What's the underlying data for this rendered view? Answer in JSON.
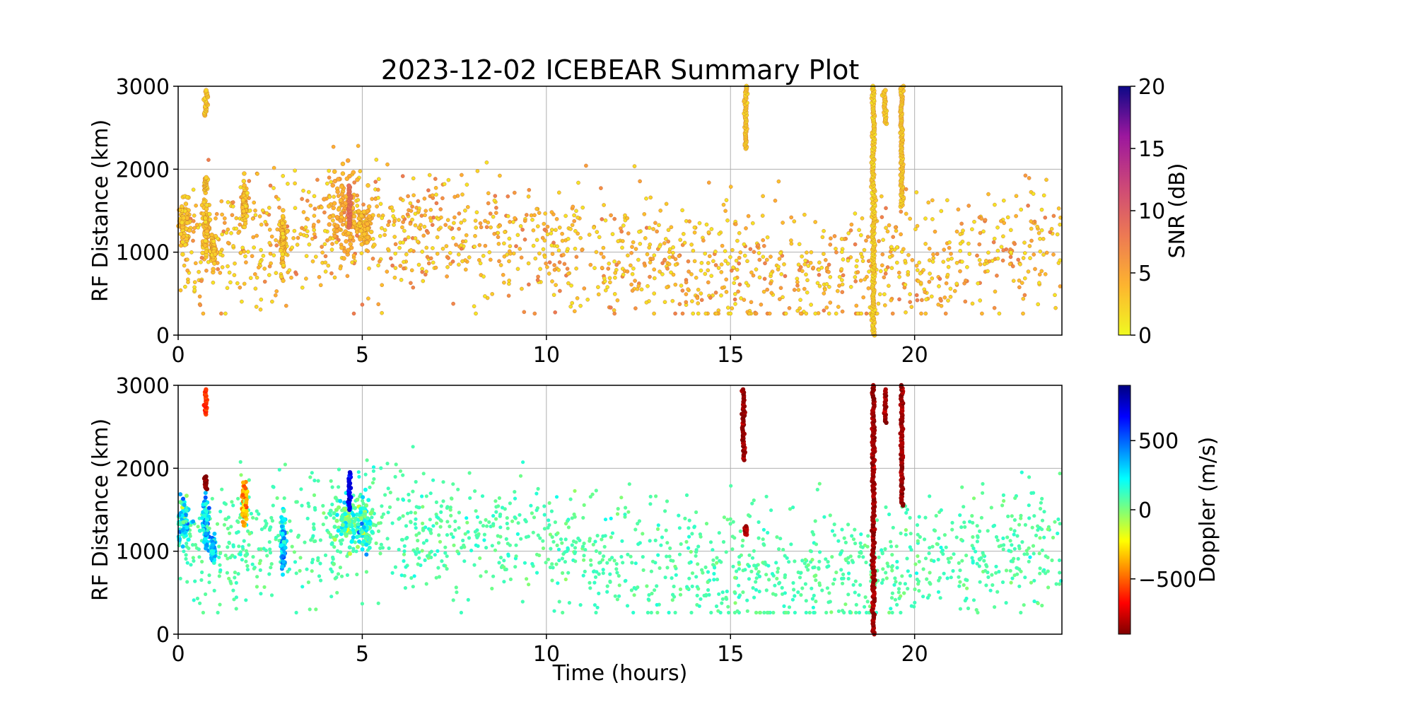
{
  "figure": {
    "title": "2023-12-02 ICEBEAR Summary Plot",
    "xlabel": "Time (hours)",
    "ylabel": "RF Distance (km)"
  },
  "chart_data": [
    {
      "type": "scatter",
      "panel": "top",
      "color_by": "SNR",
      "title": "2023-12-02 ICEBEAR Summary Plot",
      "xlabel": "",
      "ylabel": "RF Distance (km)",
      "xlim": [
        0,
        24
      ],
      "ylim": [
        0,
        3000
      ],
      "xticks": [
        0,
        5,
        10,
        15,
        20
      ],
      "yticks": [
        0,
        1000,
        2000,
        3000
      ],
      "grid": true,
      "colorbar": {
        "label": "SNR (dB)",
        "colormap": "plasma_r",
        "range": [
          0,
          20
        ],
        "ticks": [
          0,
          5,
          10,
          15,
          20
        ]
      },
      "clusters": [
        {
          "t": 0.15,
          "dt": 0.15,
          "r": 1370,
          "dr": 130,
          "snr": 1.5
        },
        {
          "t": 0.75,
          "dt": 0.08,
          "r": 1300,
          "dr": 170,
          "snr": 1.5
        },
        {
          "t": 0.95,
          "dt": 0.05,
          "r": 1020,
          "dr": 80,
          "snr": 1.5
        },
        {
          "t": 1.8,
          "dt": 0.05,
          "r": 1580,
          "dr": 120,
          "snr": 1.5
        },
        {
          "t": 2.85,
          "dt": 0.05,
          "r": 1150,
          "dr": 150,
          "snr": 1.5
        },
        {
          "t": 4.5,
          "dt": 0.35,
          "r": 1450,
          "dr": 250,
          "snr": 3
        },
        {
          "t": 5.05,
          "dt": 0.2,
          "r": 1300,
          "dr": 130,
          "snr": 2
        }
      ],
      "streaks": [
        {
          "t": 0.75,
          "r0": 2650,
          "r1": 2950,
          "snr": 1.5
        },
        {
          "t": 0.75,
          "r0": 1750,
          "r1": 1900,
          "snr": 1.5
        },
        {
          "t": 15.42,
          "r0": 2250,
          "r1": 3000,
          "snr": 1.5
        },
        {
          "t": 18.88,
          "r0": 0,
          "r1": 3000,
          "snr": 1
        },
        {
          "t": 19.2,
          "r0": 2550,
          "r1": 2950,
          "snr": 1.5
        },
        {
          "t": 19.65,
          "r0": 1550,
          "r1": 3000,
          "snr": 1.5
        },
        {
          "t": 4.65,
          "r0": 1300,
          "r1": 1800,
          "snr": 8
        }
      ],
      "background": {
        "t_range": [
          0,
          24
        ],
        "r_center": 1000,
        "r_spread": 380,
        "snr_range": [
          1,
          8
        ]
      }
    },
    {
      "type": "scatter",
      "panel": "bottom",
      "color_by": "Doppler",
      "title": "",
      "xlabel": "Time (hours)",
      "ylabel": "RF Distance (km)",
      "xlim": [
        0,
        24
      ],
      "ylim": [
        0,
        3000
      ],
      "xticks": [
        0,
        5,
        10,
        15,
        20
      ],
      "yticks": [
        0,
        1000,
        2000,
        3000
      ],
      "grid": true,
      "colorbar": {
        "label": "Doppler (m/s)",
        "colormap": "jet_r",
        "range": [
          -900,
          900
        ],
        "ticks": [
          -500,
          0,
          500
        ]
      },
      "clusters": [
        {
          "t": 0.15,
          "dt": 0.15,
          "r": 1370,
          "dr": 130,
          "doppler": 250
        },
        {
          "t": 0.75,
          "dt": 0.08,
          "r": 1350,
          "dr": 150,
          "doppler": 300
        },
        {
          "t": 0.95,
          "dt": 0.05,
          "r": 1020,
          "dr": 80,
          "doppler": 300
        },
        {
          "t": 1.8,
          "dt": 0.05,
          "r": 1580,
          "dr": 120,
          "doppler": -350
        },
        {
          "t": 2.85,
          "dt": 0.05,
          "r": 1150,
          "dr": 150,
          "doppler": 350
        },
        {
          "t": 4.55,
          "dt": 0.3,
          "r": 1350,
          "dr": 150,
          "doppler": 80
        },
        {
          "t": 5.05,
          "dt": 0.2,
          "r": 1300,
          "dr": 130,
          "doppler": 150
        }
      ],
      "streaks": [
        {
          "t": 0.75,
          "r0": 2650,
          "r1": 2950,
          "doppler": -600
        },
        {
          "t": 0.75,
          "r0": 1750,
          "r1": 1900,
          "doppler": -880
        },
        {
          "t": 4.65,
          "r0": 1500,
          "r1": 1950,
          "doppler": 700
        },
        {
          "t": 15.35,
          "r0": 2100,
          "r1": 2950,
          "doppler": -850
        },
        {
          "t": 15.42,
          "r0": 1200,
          "r1": 1300,
          "doppler": -800
        },
        {
          "t": 18.88,
          "r0": 0,
          "r1": 3000,
          "doppler": -850
        },
        {
          "t": 19.2,
          "r0": 2550,
          "r1": 2950,
          "doppler": -850
        },
        {
          "t": 19.65,
          "r0": 1550,
          "r1": 3000,
          "doppler": -850
        }
      ],
      "background": {
        "t_range": [
          0,
          24
        ],
        "r_center": 1000,
        "r_spread": 380,
        "doppler": 80
      }
    }
  ]
}
